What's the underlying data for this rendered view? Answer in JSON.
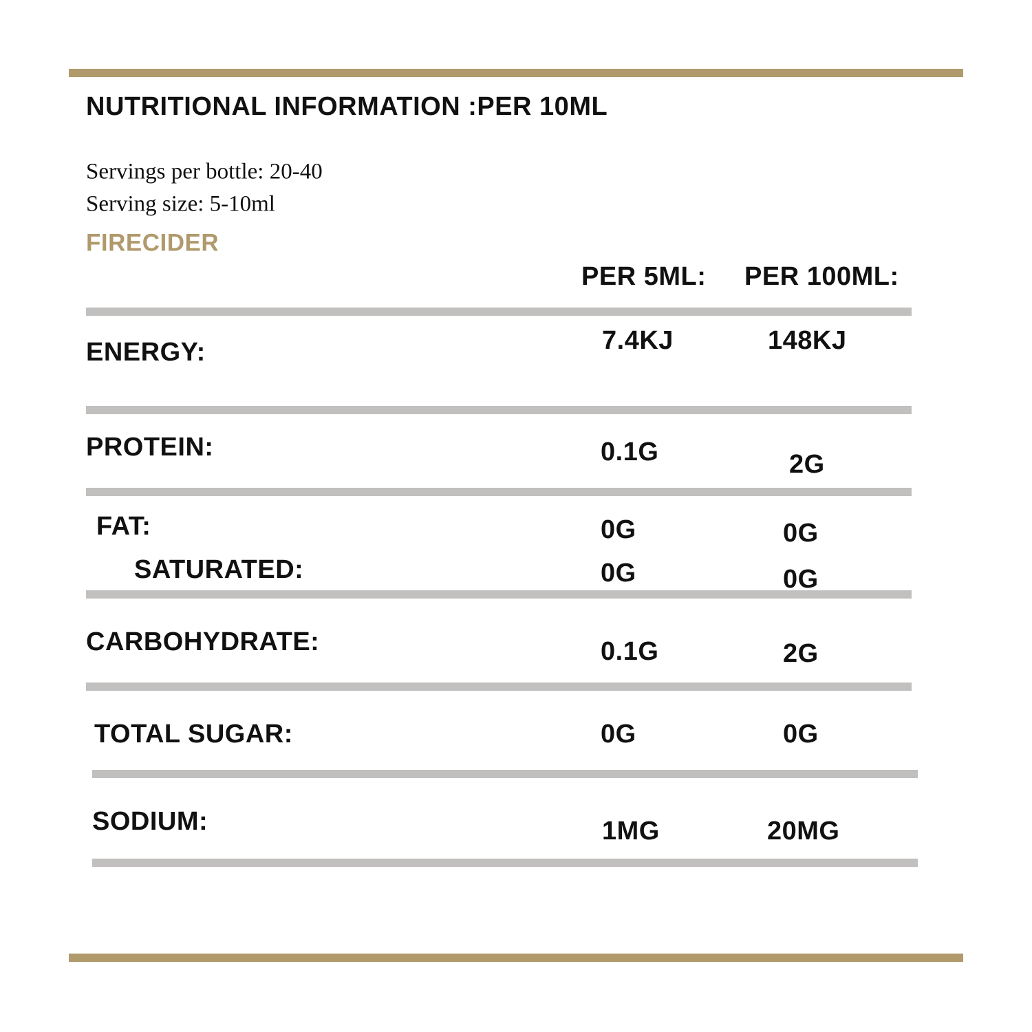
{
  "header": {
    "title": "NUTRITIONAL INFORMATION :PER 10ML",
    "servings_per_bottle": "Servings per bottle: 20-40",
    "serving_size": "Serving size: 5-10ml",
    "product": "FIRECIDER"
  },
  "table": {
    "columns": [
      "PER 5ML:",
      "PER 100ML:"
    ],
    "rows": [
      {
        "label": "ENERGY:",
        "values": [
          "7.4KJ",
          "148KJ"
        ]
      },
      {
        "label": "PROTEIN:",
        "values": [
          "0.1G",
          "2G"
        ]
      },
      {
        "label": "FAT:",
        "values": [
          "0G",
          "0G"
        ]
      },
      {
        "label": "SATURATED:",
        "values": [
          "0G",
          "0G"
        ]
      },
      {
        "label": "CARBOHYDRATE:",
        "values": [
          "0.1G",
          "2G"
        ]
      },
      {
        "label": "TOTAL SUGAR:",
        "values": [
          "0G",
          "0G"
        ]
      },
      {
        "label": "SODIUM:",
        "values": [
          "1MG",
          "20MG"
        ]
      }
    ]
  }
}
